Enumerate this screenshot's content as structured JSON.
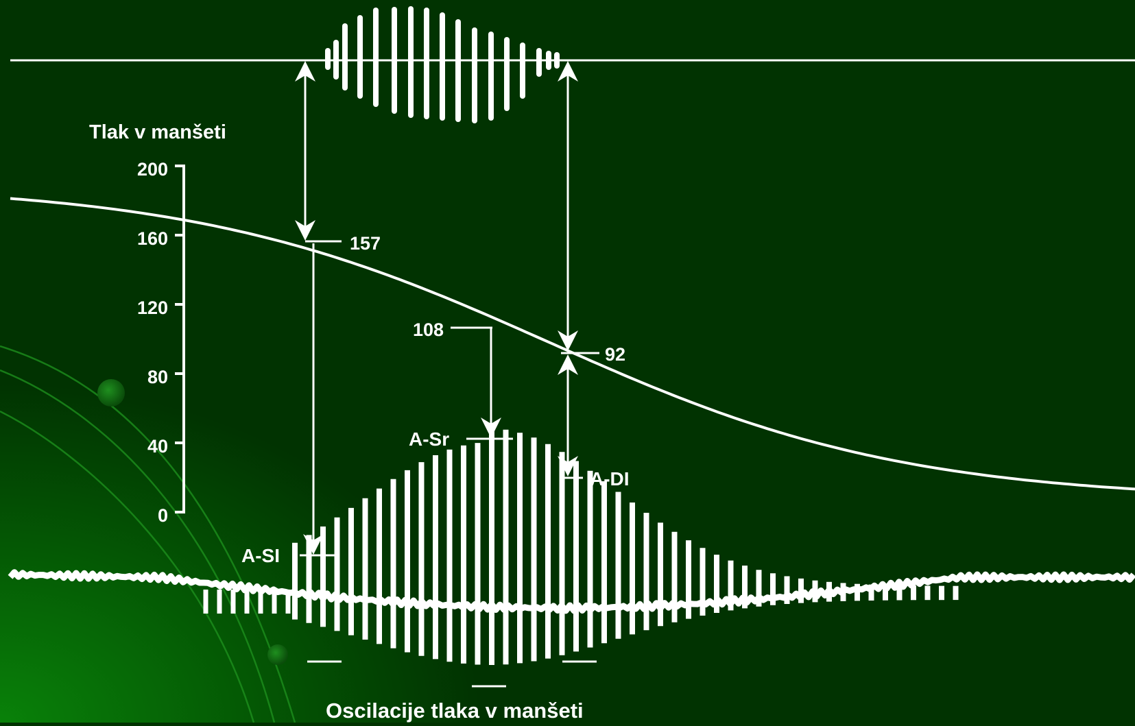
{
  "colors": {
    "background": "#013301",
    "glow": "#0a8a0a",
    "trace": "#ffffff"
  },
  "cuff_pressure_title": "Tlak v manšeti",
  "oscillation_title": "Oscilacije tlaka v manšeti",
  "pressure_axis": {
    "ticks": [
      "200",
      "160",
      "120",
      "80",
      "40",
      "0"
    ],
    "tick_values": [
      200,
      160,
      120,
      80,
      40,
      0
    ]
  },
  "points": {
    "systolic": {
      "label": "A-SI",
      "value": "157",
      "pressure": 157
    },
    "mean": {
      "label": "A-Sr",
      "value": "108",
      "pressure": 108
    },
    "diastolic": {
      "label": "A-DI",
      "value": "92",
      "pressure": 92
    }
  }
}
